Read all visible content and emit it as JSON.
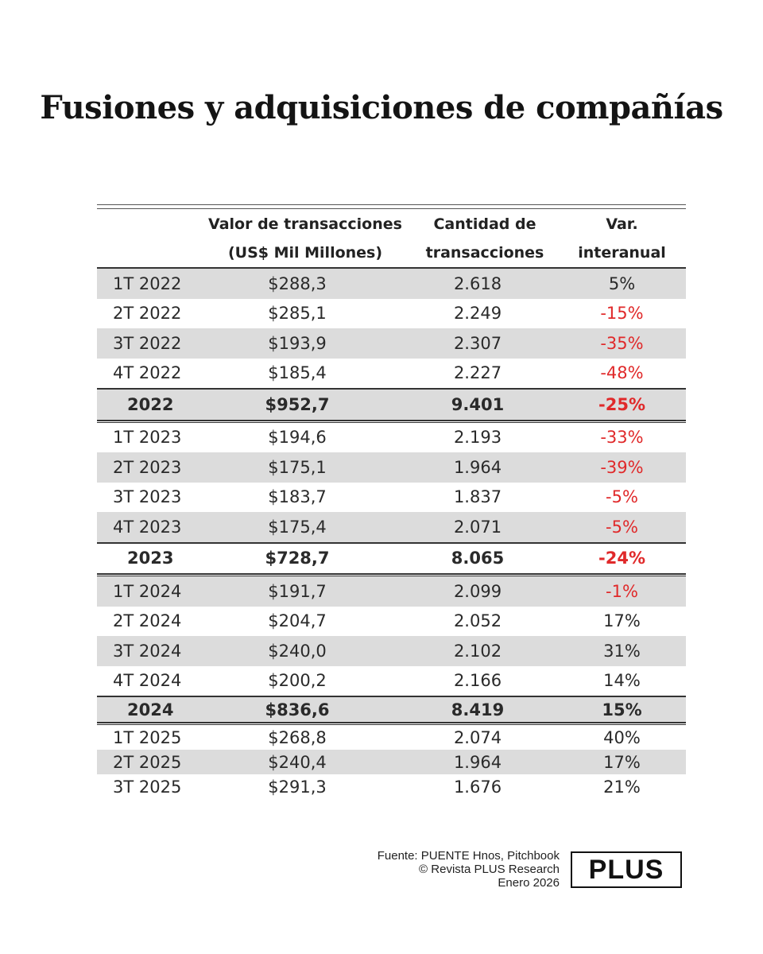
{
  "title": "Fusiones y adquisiciones de compañías",
  "headers": {
    "value_line1": "Valor de transacciones",
    "value_line2": "(US$ Mil Millones)",
    "count_line1": "Cantidad de",
    "count_line2": "transacciones",
    "var_line1": "Var.",
    "var_line2": "interanual"
  },
  "rows": [
    {
      "period": "1T 2022",
      "value": "$288,3",
      "count": "2.618",
      "var": "5%"
    },
    {
      "period": "2T 2022",
      "value": "$285,1",
      "count": "2.249",
      "var": "-15%"
    },
    {
      "period": "3T 2022",
      "value": "$193,9",
      "count": "2.307",
      "var": "-35%"
    },
    {
      "period": "4T 2022",
      "value": "$185,4",
      "count": "2.227",
      "var": "-48%"
    },
    {
      "period": "2022",
      "value": "$952,7",
      "count": "9.401",
      "var": "-25%"
    },
    {
      "period": "1T 2023",
      "value": "$194,6",
      "count": "2.193",
      "var": "-33%"
    },
    {
      "period": "2T 2023",
      "value": "$175,1",
      "count": "1.964",
      "var": "-39%"
    },
    {
      "period": "3T 2023",
      "value": "$183,7",
      "count": "1.837",
      "var": "-5%"
    },
    {
      "period": "4T 2023",
      "value": "$175,4",
      "count": "2.071",
      "var": "-5%"
    },
    {
      "period": "2023",
      "value": "$728,7",
      "count": "8.065",
      "var": "-24%"
    },
    {
      "period": "1T 2024",
      "value": "$191,7",
      "count": "2.099",
      "var": "-1%"
    },
    {
      "period": "2T 2024",
      "value": "$204,7",
      "count": "2.052",
      "var": "17%"
    },
    {
      "period": "3T 2024",
      "value": "$240,0",
      "count": "2.102",
      "var": "31%"
    },
    {
      "period": "4T 2024",
      "value": "$200,2",
      "count": "2.166",
      "var": "14%"
    },
    {
      "period": "2024",
      "value": "$836,6",
      "count": "8.419",
      "var": "15%"
    },
    {
      "period": "1T 2025",
      "value": "$268,8",
      "count": "2.074",
      "var": "40%"
    },
    {
      "period": "2T 2025",
      "value": "$240,4",
      "count": "1.964",
      "var": "17%"
    },
    {
      "period": "3T 2025",
      "value": "$291,3",
      "count": "1.676",
      "var": "21%"
    }
  ],
  "source": {
    "line1": "Fuente: PUENTE Hnos, Pitchbook",
    "line2": "© Revista PLUS Research",
    "line3": "Enero 2026"
  },
  "logo": "PLUS",
  "colors": {
    "negative": "#e0292a",
    "shade": "#dcdcdc"
  }
}
